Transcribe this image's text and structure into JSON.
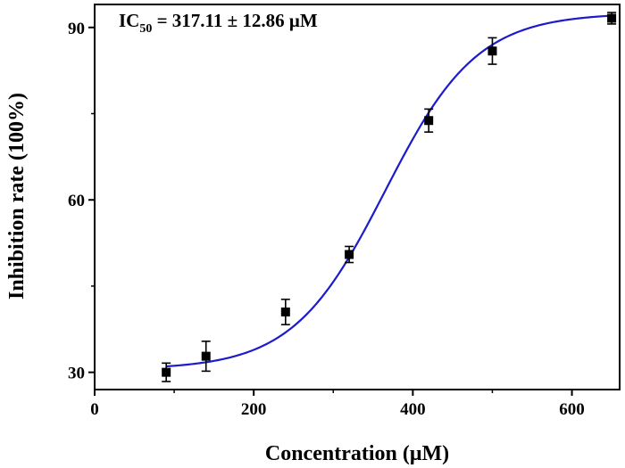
{
  "chart_data": {
    "type": "scatter",
    "xlabel": "Concentration (μM)",
    "ylabel": "Inhibition rate (100%)",
    "xlim": [
      0,
      660
    ],
    "ylim": [
      27,
      94
    ],
    "xticks": [
      0,
      200,
      400,
      600
    ],
    "yticks": [
      30,
      60,
      90
    ],
    "grid": false,
    "points": [
      {
        "x": 90,
        "y": 30.0,
        "err": 1.6
      },
      {
        "x": 140,
        "y": 32.8,
        "err": 2.6
      },
      {
        "x": 240,
        "y": 40.5,
        "err": 2.2
      },
      {
        "x": 320,
        "y": 50.5,
        "err": 1.4
      },
      {
        "x": 420,
        "y": 73.8,
        "err": 2.0
      },
      {
        "x": 500,
        "y": 85.9,
        "err": 2.3
      },
      {
        "x": 650,
        "y": 91.6,
        "err": 1.0
      }
    ],
    "fit": {
      "type": "sigmoid",
      "bottom": 30.5,
      "top": 92.5,
      "x0": 365,
      "slope": 58,
      "color": "#1c1ccc"
    },
    "marker_color": "#000000",
    "annotation": {
      "prefix": "IC",
      "subscript": "50",
      "value": " = 317.11 ± 12.86 μM"
    }
  }
}
